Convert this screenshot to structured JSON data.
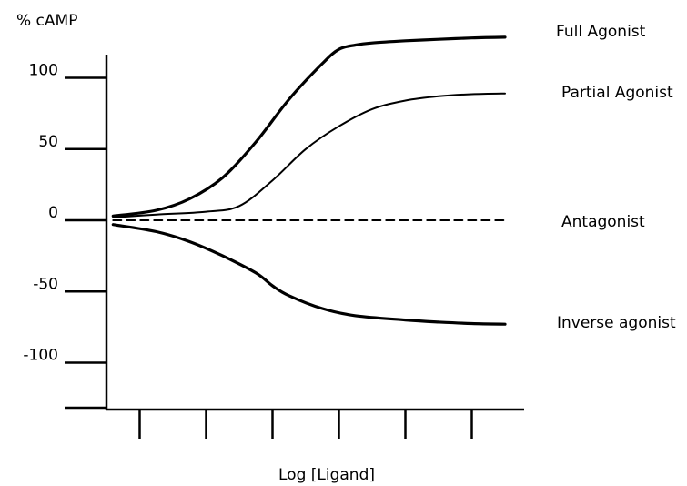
{
  "chart_data": {
    "type": "line",
    "title": "",
    "ylabel": "% cAMP",
    "xlabel": "Log [Ligand]",
    "ylim": [
      -150,
      135
    ],
    "xlim": [
      0,
      12
    ],
    "yticks": [
      100,
      50,
      0,
      -50,
      -100
    ],
    "yticklabels": [
      "100",
      "50",
      "0",
      "-50",
      "-100"
    ],
    "xticks": [
      1,
      3,
      5,
      7,
      9,
      11
    ],
    "grid": false,
    "series": [
      {
        "name": "Full Agonist",
        "color": "#000000",
        "style": "solid",
        "weight": "heavy",
        "x": [
          0.2,
          1.5,
          2.5,
          3.5,
          4.5,
          5.5,
          6.5,
          7,
          7.5,
          8,
          9,
          10,
          11,
          12
        ],
        "y": [
          3,
          7,
          15,
          30,
          55,
          85,
          110,
          120,
          123,
          124.5,
          126,
          127,
          128,
          128.5
        ]
      },
      {
        "name": "Partial Agonist",
        "color": "#000000",
        "style": "solid",
        "weight": "light",
        "x": [
          0.2,
          1.5,
          3,
          4,
          5,
          6,
          7,
          8,
          9,
          10,
          11,
          12
        ],
        "y": [
          2,
          4,
          6,
          10,
          28,
          50,
          66,
          78,
          84,
          87,
          88.5,
          89
        ]
      },
      {
        "name": "Antagonist",
        "color": "#000000",
        "style": "dashed",
        "weight": "light",
        "x": [
          0.2,
          12
        ],
        "y": [
          0,
          0
        ]
      },
      {
        "name": "Inverse agonist",
        "color": "#000000",
        "style": "solid",
        "weight": "heavy",
        "x": [
          0.2,
          1.5,
          2.5,
          3.5,
          4.5,
          5,
          5.5,
          6.5,
          7.5,
          9,
          10,
          11,
          12
        ],
        "y": [
          -3,
          -8,
          -15,
          -25,
          -37,
          -46,
          -53,
          -62,
          -67,
          -70,
          -71.5,
          -72.5,
          -73
        ]
      }
    ]
  }
}
